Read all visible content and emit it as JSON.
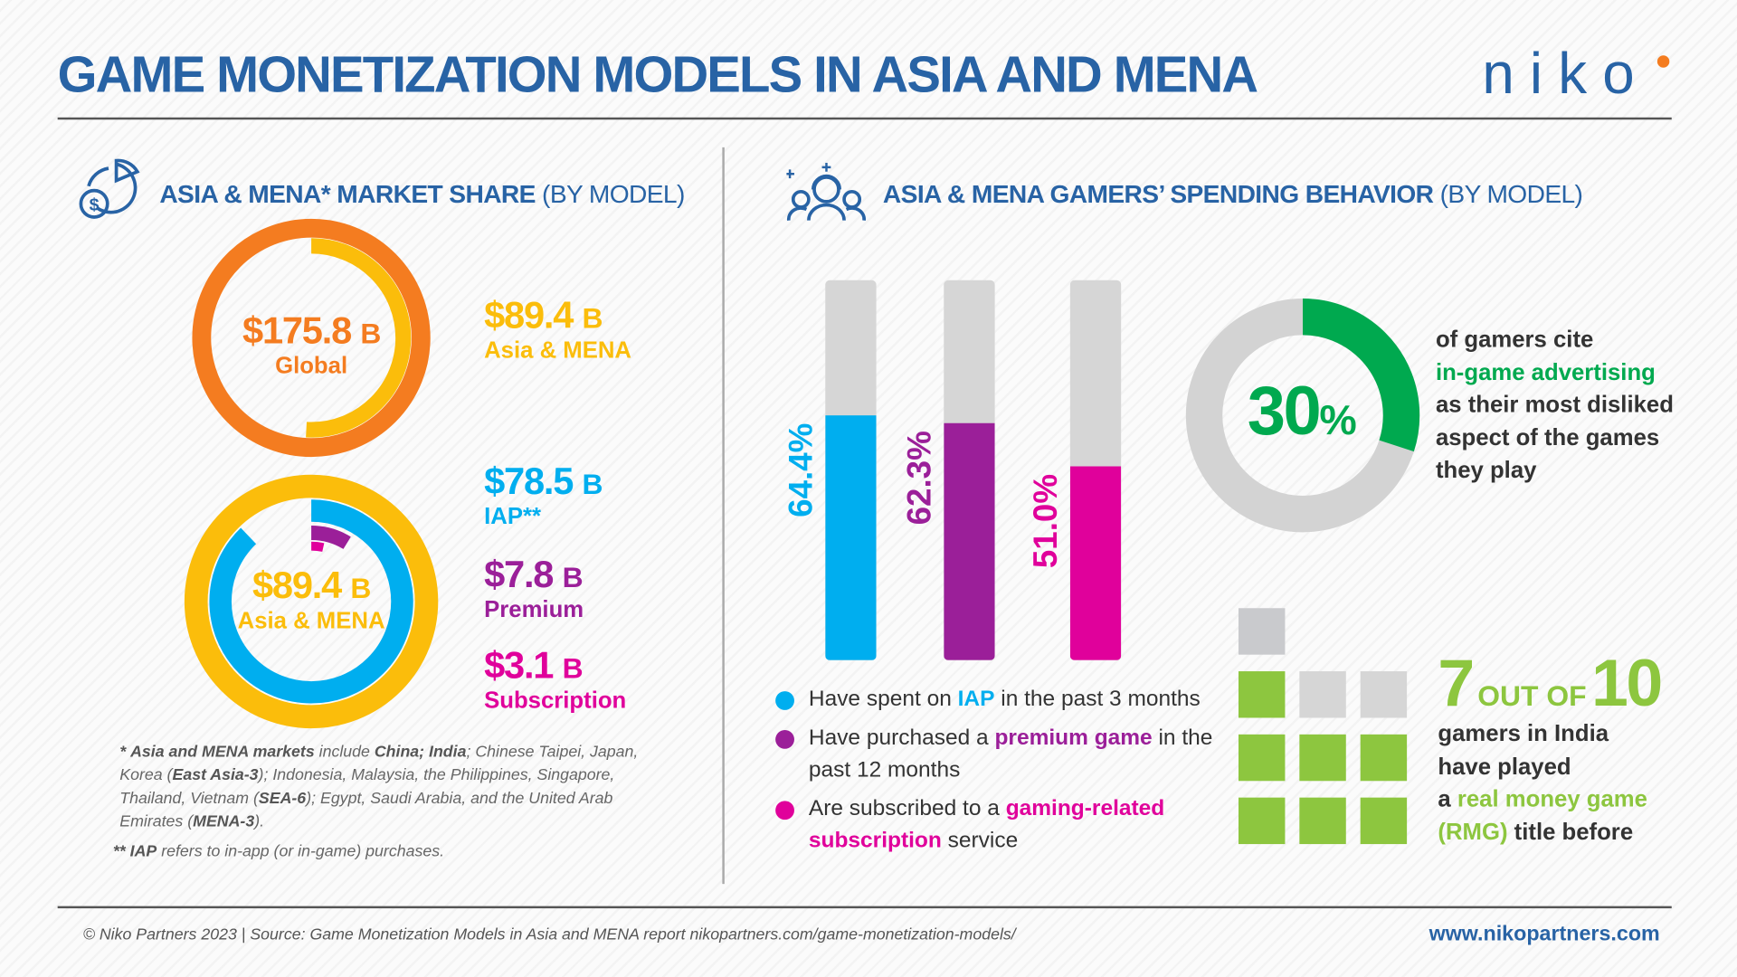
{
  "header": {
    "title": "GAME MONETIZATION MODELS IN ASIA AND MENA",
    "logo_text": "niko",
    "logo_dot_color": "#f47c20"
  },
  "colors": {
    "blue": "#2863a5",
    "orange": "#f47c20",
    "yellow": "#fbbd0b",
    "cyan": "#00aeef",
    "purple": "#9b1f99",
    "magenta": "#e0019b",
    "green": "#00a94f",
    "lime": "#8dc63f",
    "gray": "#d3d3d3"
  },
  "left": {
    "section_title": "ASIA & MENA* MARKET SHARE",
    "section_suffix": "(BY MODEL)",
    "global": {
      "value": "$175.8",
      "unit": "B",
      "label": "Global"
    },
    "asia": {
      "value": "$89.4",
      "unit": "B",
      "label": "Asia & MENA"
    },
    "iap": {
      "value": "$78.5",
      "unit": "B",
      "label": "IAP**"
    },
    "premium": {
      "value": "$7.8",
      "unit": "B",
      "label": "Premium"
    },
    "subscription": {
      "value": "$3.1",
      "unit": "B",
      "label": "Subscription"
    },
    "footnote1": {
      "mark": "*",
      "bold1": "Asia and MENA markets",
      "t1": " include ",
      "bold2": "China; India",
      "t2": "; Chinese Taipei, Japan, Korea (",
      "bold3": "East Asia-3",
      "t3": "); Indonesia, Malaysia, the Philippines, Singapore, Thailand, Vietnam (",
      "bold4": "SEA-6",
      "t4": "); Egypt, Saudi Arabia, and the United Arab Emirates (",
      "bold5": "MENA-3",
      "t5": ")."
    },
    "footnote2": {
      "mark": "**",
      "bold": "IAP",
      "text": " refers to in-app (or in-game) purchases."
    }
  },
  "right": {
    "section_title": "ASIA & MENA GAMERS’ SPENDING BEHAVIOR",
    "section_suffix": "(BY MODEL)",
    "legend": [
      {
        "pre": "Have spent on ",
        "hl": "IAP",
        "post": " in the past 3 months"
      },
      {
        "pre": "Have purchased a ",
        "hl": "premium game",
        "post": " in the past 12 months"
      },
      {
        "pre": "Are subscribed to a ",
        "hl": "gaming-related subscription",
        "post": " service"
      }
    ],
    "ad_stat": {
      "value": "30",
      "unit": "%",
      "pre": "of gamers cite",
      "hl": "in-game advertising",
      "post": "as their most disliked aspect of the games they play"
    },
    "rmg_stat": {
      "n": "7",
      "mid": "OUT OF",
      "d": "10",
      "l1": "gamers in India",
      "l2": "have played",
      "l3pre": "a ",
      "hl1": "real money game",
      "hl2": "(RMG)",
      "l4post": " title before"
    }
  },
  "chart_data": [
    {
      "type": "pie",
      "subtype": "donut",
      "slices": [
        {
          "label": "Global",
          "value": 175.8
        },
        {
          "label": "Asia & MENA",
          "value": 89.4
        }
      ],
      "unit": "$B"
    },
    {
      "type": "pie",
      "subtype": "nested-donut",
      "total": {
        "label": "Asia & MENA",
        "value": 89.4
      },
      "slices": [
        {
          "label": "IAP",
          "value": 78.5
        },
        {
          "label": "Premium",
          "value": 7.8
        },
        {
          "label": "Subscription",
          "value": 3.1
        }
      ],
      "unit": "$B"
    },
    {
      "type": "bar",
      "orientation": "vertical",
      "categories": [
        "IAP",
        "Premium",
        "Subscription"
      ],
      "values": [
        64.4,
        62.3,
        51.0
      ],
      "labels": [
        "64.4%",
        "62.3%",
        "51.0%"
      ],
      "ylim": [
        0,
        100
      ],
      "colors": [
        "#00aeef",
        "#9b1f99",
        "#e0019b"
      ]
    },
    {
      "type": "pie",
      "subtype": "donut",
      "values": [
        30,
        70
      ],
      "label": "30%"
    },
    {
      "type": "table",
      "subtype": "icon-array",
      "filled": 7,
      "total": 10
    }
  ],
  "footer": {
    "left": "© Niko Partners 2023  |  Source: Game Monetization Models in Asia and MENA report nikopartners.com/game-monetization-models/",
    "right": "www.nikopartners.com"
  }
}
